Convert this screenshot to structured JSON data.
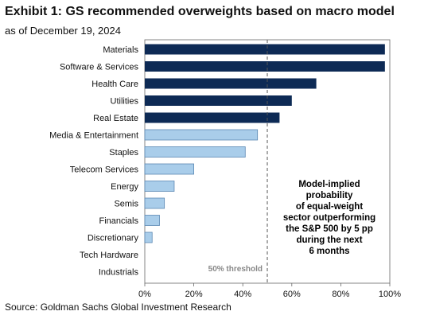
{
  "header": {
    "title": "Exhibit 1: GS recommended overweights based on macro model",
    "subtitle": "as of December 19, 2024"
  },
  "footer": {
    "source": "Source: Goldman Sachs Global Investment Research"
  },
  "colors": {
    "dark": "#0d2a55",
    "light": "#a9cdea",
    "light_stroke": "#5b88b3"
  },
  "chart_data": {
    "type": "bar",
    "orientation": "horizontal",
    "categories": [
      "Materials",
      "Software & Services",
      "Health Care",
      "Utilities",
      "Real Estate",
      "Media & Entertainment",
      "Staples",
      "Telecom Services",
      "Energy",
      "Semis",
      "Financials",
      "Discretionary",
      "Tech Hardware",
      "Industrials"
    ],
    "values": [
      98,
      98,
      70,
      60,
      55,
      46,
      41,
      20,
      12,
      8,
      6,
      3,
      0,
      0
    ],
    "value_unit": "%",
    "xlim": [
      0,
      100
    ],
    "ticks": [
      "0%",
      "20%",
      "40%",
      "60%",
      "80%",
      "100%"
    ],
    "tick_values": [
      0,
      20,
      40,
      60,
      80,
      100
    ],
    "threshold": {
      "value": 50,
      "label": "50% threshold"
    },
    "annotation": [
      "Model-implied",
      "probability",
      "of equal-weight",
      "sector outperforming",
      "the S&P 500 by 5 pp",
      "during the next",
      "6 months"
    ],
    "grid": false,
    "legend": "none"
  }
}
